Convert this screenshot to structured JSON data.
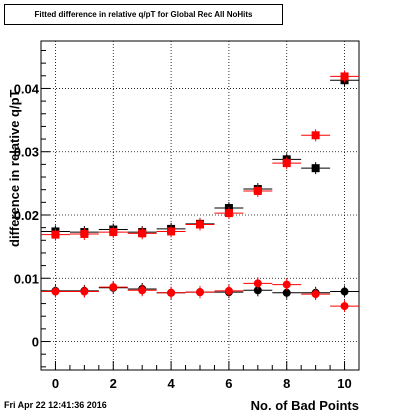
{
  "stamp": "Fri Apr 22 12:41:36 2016",
  "chart_data": {
    "type": "scatter",
    "title": "Fitted difference in relative q/pT for Global Rec All NoHits",
    "xlabel": "No. of Bad Points",
    "ylabel": "difference in relative q/pT",
    "xlim": [
      -0.5,
      10.5
    ],
    "ylim": [
      -0.0045,
      0.0475
    ],
    "x_ticks": [
      "0",
      "2",
      "4",
      "6",
      "8",
      "10"
    ],
    "y_ticks": [
      "0",
      "0.01",
      "0.02",
      "0.03",
      "0.04"
    ],
    "x_tick_values": [
      0,
      2,
      4,
      6,
      8,
      10
    ],
    "y_tick_values": [
      0,
      0.01,
      0.02,
      0.03,
      0.04
    ],
    "grid": true,
    "series": [
      {
        "marker": "square",
        "color": "#000000",
        "x": [
          0,
          1,
          2,
          3,
          4,
          5,
          6,
          7,
          8,
          9,
          10
        ],
        "y": [
          0.0174,
          0.0173,
          0.0177,
          0.0173,
          0.0178,
          0.0186,
          0.0211,
          0.0241,
          0.0288,
          0.0274,
          0.0413
        ]
      },
      {
        "marker": "square",
        "color": "#ff0000",
        "x": [
          0,
          1,
          2,
          3,
          4,
          5,
          6,
          7,
          8,
          9,
          10
        ],
        "y": [
          0.0169,
          0.017,
          0.0173,
          0.0171,
          0.0174,
          0.0185,
          0.0203,
          0.0238,
          0.0282,
          0.0326,
          0.0419
        ]
      },
      {
        "marker": "circle",
        "color": "#000000",
        "x": [
          0,
          1,
          2,
          3,
          4,
          5,
          6,
          7,
          8,
          9,
          10
        ],
        "y": [
          0.008,
          0.008,
          0.0085,
          0.0083,
          0.0077,
          0.0078,
          0.0078,
          0.0081,
          0.0077,
          0.0077,
          0.0079
        ]
      },
      {
        "marker": "circle",
        "color": "#ff0000",
        "x": [
          0,
          1,
          2,
          3,
          4,
          5,
          6,
          7,
          8,
          9,
          10
        ],
        "y": [
          0.0079,
          0.0079,
          0.0086,
          0.0081,
          0.0077,
          0.0078,
          0.008,
          0.0092,
          0.009,
          0.0075,
          0.0056
        ]
      }
    ]
  }
}
